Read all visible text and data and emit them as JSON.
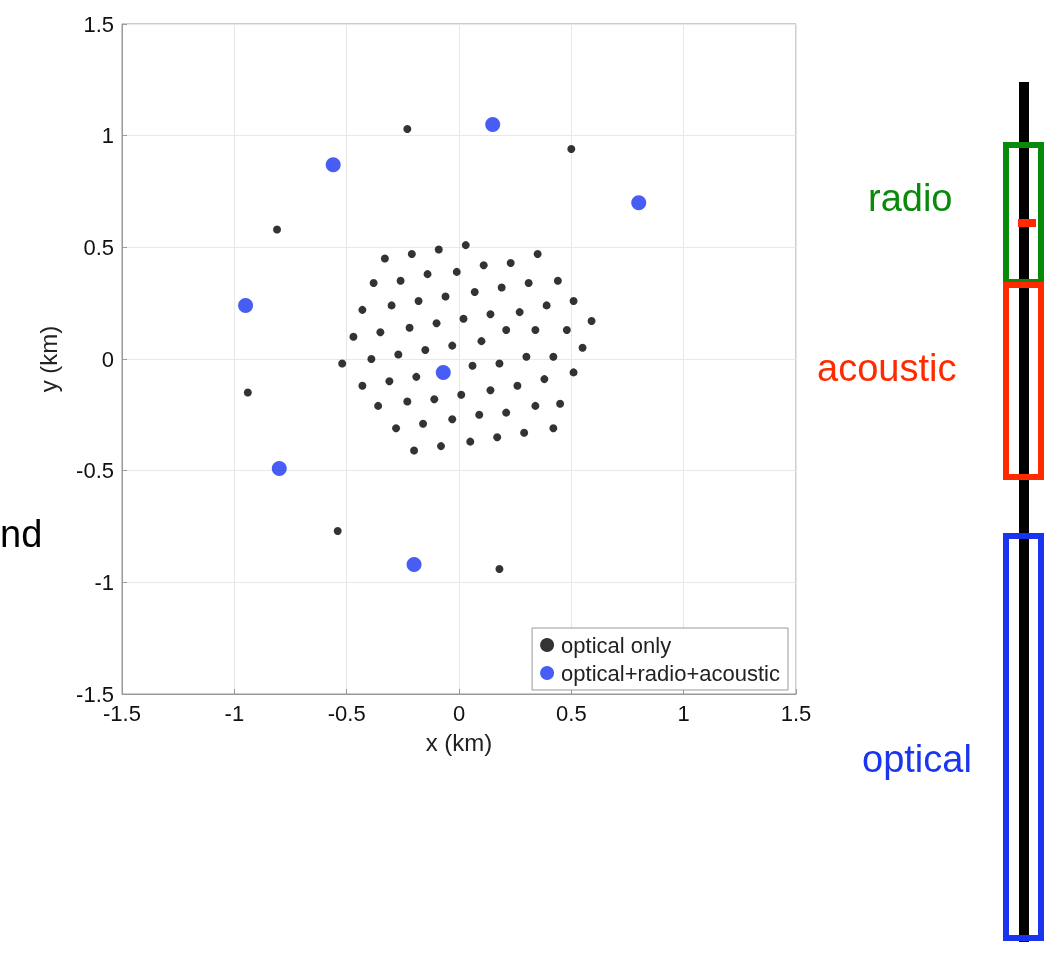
{
  "chart_data": {
    "type": "scatter",
    "xlabel": "x (km)",
    "ylabel": "y (km)",
    "xlim": [
      -1.5,
      1.5
    ],
    "ylim": [
      -1.5,
      1.5
    ],
    "xticks": [
      -1.5,
      -1,
      -0.5,
      0,
      0.5,
      1,
      1.5
    ],
    "yticks": [
      -1.5,
      -1,
      -0.5,
      0,
      0.5,
      1,
      1.5
    ],
    "grid": true,
    "legend": "bottom right",
    "marker": "circle",
    "annotations": [
      "nd",
      "radio",
      "acoustic",
      "optical"
    ],
    "series": [
      {
        "name": "optical only",
        "color": "#000000",
        "x": [
          -0.33,
          -0.21,
          -0.09,
          0.03,
          0.35,
          0.11,
          0.23,
          -0.01,
          -0.14,
          -0.38,
          -0.26,
          0.31,
          0.44,
          0.19,
          0.07,
          -0.06,
          -0.18,
          -0.43,
          -0.3,
          0.51,
          0.39,
          0.27,
          0.14,
          0.02,
          -0.1,
          -0.22,
          0.59,
          -0.47,
          -0.35,
          0.21,
          0.34,
          0.48,
          0.1,
          -0.03,
          -0.15,
          -0.27,
          0.55,
          -0.52,
          -0.39,
          0.3,
          0.42,
          0.18,
          0.06,
          -0.19,
          -0.31,
          -0.43,
          0.51,
          0.38,
          0.26,
          0.14,
          0.01,
          -0.11,
          -0.23,
          -0.36,
          0.45,
          0.34,
          0.21,
          0.09,
          -0.03,
          -0.16,
          -0.28,
          0.42,
          0.29,
          0.17,
          0.05,
          -0.08,
          -0.2,
          -0.23,
          0.5,
          -0.81,
          -0.94,
          -0.54,
          0.18
        ],
        "values": [
          0.45,
          0.47,
          0.49,
          0.51,
          0.47,
          0.42,
          0.43,
          0.39,
          0.38,
          0.34,
          0.35,
          0.34,
          0.35,
          0.32,
          0.3,
          0.28,
          0.26,
          0.22,
          0.24,
          0.26,
          0.24,
          0.21,
          0.2,
          0.18,
          0.16,
          0.14,
          0.17,
          0.1,
          0.12,
          0.13,
          0.13,
          0.13,
          0.08,
          0.06,
          0.04,
          0.02,
          0.05,
          -0.02,
          0.0,
          0.01,
          0.01,
          -0.02,
          -0.03,
          -0.08,
          -0.1,
          -0.12,
          -0.06,
          -0.09,
          -0.12,
          -0.14,
          -0.16,
          -0.18,
          -0.19,
          -0.21,
          -0.2,
          -0.21,
          -0.24,
          -0.25,
          -0.27,
          -0.29,
          -0.31,
          -0.31,
          -0.33,
          -0.35,
          -0.37,
          -0.39,
          -0.41,
          1.03,
          0.94,
          0.58,
          -0.15,
          -0.77,
          -0.94
        ]
      },
      {
        "name": "optical+radio+acoustic",
        "color": "#1a35f0",
        "x": [
          -0.07,
          0.15,
          -0.56,
          0.8,
          -0.95,
          -0.8,
          -0.2
        ],
        "values": [
          -0.06,
          1.05,
          0.87,
          0.7,
          0.24,
          -0.49,
          -0.92
        ]
      }
    ]
  }
}
